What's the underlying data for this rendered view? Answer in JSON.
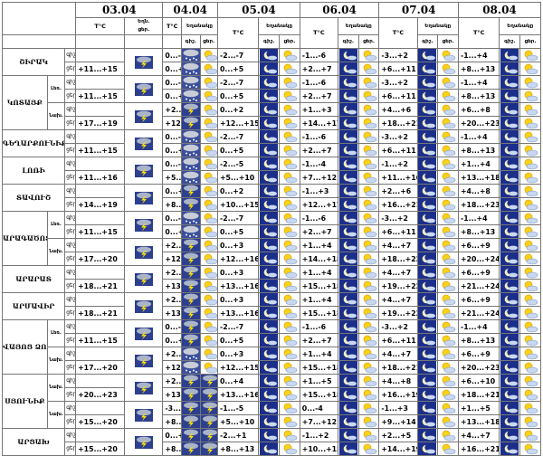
{
  "dates": [
    "03.04",
    "04.04",
    "05.04",
    "06.04",
    "07.04",
    "08.04"
  ],
  "header": {
    "temp": "T°C",
    "weather": "Եղանակը",
    "day_short": "ցեր.",
    "night_short": "գիշ.",
    "weather_short": "Եղն.",
    "day_part_short": "ցեր.",
    "sub_gish": "գիշ.",
    "sub_cer": "ցեր."
  },
  "row_labels": {
    "night": "գիշ.",
    "day": "ցեր."
  },
  "icon_types": {
    "sun": "sun-icon",
    "partly": "sun-cloud-icon",
    "moon": "moon-icon",
    "storm": "thunderstorm-icon",
    "snow": "snow-cloud-icon"
  },
  "regions": [
    {
      "name": "ՇԻՐԱԿ",
      "subs": [
        {
          "sub": "",
          "n": [
            "",
            "0...-5",
            "-2...-7",
            "-1...-6",
            "-3...+2",
            "-1...+4"
          ],
          "d": [
            "+11...+15",
            "0...+5",
            "0...+5",
            "+2...+7",
            "+6...+11",
            "+8...+13"
          ]
        }
      ]
    },
    {
      "name": "ԿՈՏԱՅՔ",
      "subs": [
        {
          "sub": "Լեռ.",
          "n": [
            "",
            "0...-5",
            "-2...-7",
            "-1...-6",
            "-3...+2",
            "-1...+4"
          ],
          "d": [
            "+11...+15",
            "0...+5",
            "0...+5",
            "+2...+7",
            "+6...+11",
            "+8...+13"
          ]
        },
        {
          "sub": "Նախ.",
          "n": [
            "",
            "+2...+4",
            "0...+2",
            "+1...+3",
            "+4...+6",
            "+6...+8"
          ],
          "d": [
            "+17...+19",
            "+12...+15",
            "+12...+15",
            "+14...+17",
            "+18...+21",
            "+20...+23"
          ]
        }
      ]
    },
    {
      "name": "ԳԵՂԱՐՔՈՒՆԻՔ",
      "subs": [
        {
          "sub": "",
          "n": [
            "",
            "0...-5",
            "-2...-7",
            "-1...-6",
            "-3...+2",
            "-1...+4"
          ],
          "d": [
            "+11...+15",
            "0...+5",
            "0...+5",
            "+2...+7",
            "+6...+11",
            "+8...+13"
          ]
        }
      ]
    },
    {
      "name": "ԼՈՌԻ",
      "subs": [
        {
          "sub": "",
          "n": [
            "",
            "0...-3",
            "-2...-5",
            "-1...-4",
            "-1...+2",
            "+1...+4"
          ],
          "d": [
            "+11...+16",
            "+5...+10",
            "+5...+10",
            "+7...+12",
            "+11...+16",
            "+13...+18"
          ]
        }
      ]
    },
    {
      "name": "ՏԱՎՈՒՇ",
      "subs": [
        {
          "sub": "",
          "n": [
            "",
            "0...+4",
            "0...+2",
            "-1...+3",
            "+2...+6",
            "+4...+8"
          ],
          "d": [
            "+14...+19",
            "+8...+13",
            "+10...+15",
            "+12...+17",
            "+16...+21",
            "+18...+23"
          ]
        }
      ]
    },
    {
      "name": "ԱՐԱԳԱԾՈՏՆ",
      "subs": [
        {
          "sub": "Լեռ.",
          "n": [
            "",
            "0...-5",
            "-2...-7",
            "-1...-6",
            "-3...+2",
            "-1...+4"
          ],
          "d": [
            "+11...+15",
            "0...+5",
            "0...+5",
            "+2...+7",
            "+6...+11",
            "+8...+13"
          ]
        },
        {
          "sub": "Նախ.",
          "n": [
            "",
            "+2...+5",
            "0...+3",
            "+1...+4",
            "+4...+7",
            "+6...+9"
          ],
          "d": [
            "+17...+20",
            "+12...+16",
            "+12...+16",
            "+14...+18",
            "+18...+22",
            "+20...+24"
          ]
        }
      ]
    },
    {
      "name": "ԱՐԱՐԱՏ",
      "subs": [
        {
          "sub": "",
          "n": [
            "",
            "+2...+5",
            "0...+3",
            "+1...+4",
            "+4...+7",
            "+6...+9"
          ],
          "d": [
            "+18...+21",
            "+13...+16",
            "+13...+16",
            "+15...+18",
            "+19...+22",
            "+21...+24"
          ]
        }
      ]
    },
    {
      "name": "ԱՐՄԱՎԻՐ",
      "subs": [
        {
          "sub": "",
          "n": [
            "",
            "+2...+5",
            "0...+3",
            "+1...+4",
            "+4...+7",
            "+6...+9"
          ],
          "d": [
            "+18...+21",
            "+13...+16",
            "+13...+16",
            "+15...+18",
            "+19...+22",
            "+21...+24"
          ]
        }
      ]
    },
    {
      "name": "ՎԱՅՈՑ ՁՈՐ",
      "subs": [
        {
          "sub": "Լեռ.",
          "n": [
            "",
            "0...-5",
            "-2...-7",
            "-1...-6",
            "-3...+2",
            "-1...+4"
          ],
          "d": [
            "+11...+15",
            "0...+5",
            "0...+5",
            "+2...+7",
            "+6...+11",
            "+8...+13"
          ]
        },
        {
          "sub": "Նախ.",
          "n": [
            "",
            "+2...+5",
            "0...+3",
            "+1...+4",
            "+4...+7",
            "+6...+9"
          ],
          "d": [
            "+17...+20",
            "+12...+15",
            "+12...+15",
            "+15...+18",
            "+18...+21",
            "+20...+23"
          ]
        }
      ]
    },
    {
      "name": "ՍՅՈՒՆԻՔ",
      "subs": [
        {
          "sub": "Նախ.",
          "n": [
            "",
            "+2...+6",
            "0...+4",
            "+1...+5",
            "+4...+8",
            "+6...+10"
          ],
          "d": [
            "+20...+23",
            "+13...+16",
            "+13...+16",
            "+15...+18",
            "+16...+19",
            "+18...+21"
          ]
        },
        {
          "sub": "Նախ.",
          "n": [
            "",
            "-3...+1",
            "-1...-5",
            "0...-4",
            "-1...+3",
            "+1...+5"
          ],
          "d": [
            "+15...+20",
            "+8...+13",
            "+5...+10",
            "+7...+12",
            "+9...+14",
            "+13...+18"
          ]
        }
      ]
    },
    {
      "name": "ԱՐՑԱԽ",
      "subs": [
        {
          "sub": "",
          "n": [
            "",
            "0...+3",
            "-2...+1",
            "-1...+2",
            "+2...+5",
            "+4...+7"
          ],
          "d": [
            "+15...+20",
            "+8...+13",
            "+8...+13",
            "+10...+15",
            "+14...+19",
            "+16...+21"
          ]
        }
      ]
    }
  ],
  "icons": {
    "c03": [
      "storm",
      "storm",
      "storm",
      "storm",
      "storm",
      "storm",
      "storm",
      "storm",
      "storm",
      "storm",
      "storm",
      "storm",
      "storm",
      "storm",
      "storm",
      "storm",
      "storm",
      "storm",
      "storm",
      "storm",
      "storm",
      "storm",
      "storm",
      "storm",
      "storm",
      "storm",
      "storm",
      "storm",
      "storm",
      "storm"
    ],
    "c04a": [
      "snow",
      "snow",
      "snow",
      "snow",
      "storm",
      "storm",
      "snow",
      "snow",
      "snow",
      "snow",
      "storm",
      "storm",
      "snow",
      "snow",
      "storm",
      "storm",
      "storm",
      "storm",
      "storm",
      "storm",
      "storm",
      "storm",
      "snow",
      "snow",
      "storm",
      "storm",
      "storm",
      "storm",
      "storm",
      "storm"
    ],
    "c04b": [
      "partly",
      "partly",
      "partly",
      "partly",
      "partly",
      "partly",
      "partly",
      "partly",
      "partly",
      "partly",
      "partly",
      "partly",
      "partly",
      "partly",
      "partly",
      "partly",
      "partly",
      "partly",
      "partly",
      "partly",
      "partly",
      "partly",
      "partly",
      "partly",
      "storm",
      "storm",
      "storm",
      "storm",
      "storm",
      "storm"
    ],
    "later_night": "moon",
    "later_day": "partly"
  }
}
